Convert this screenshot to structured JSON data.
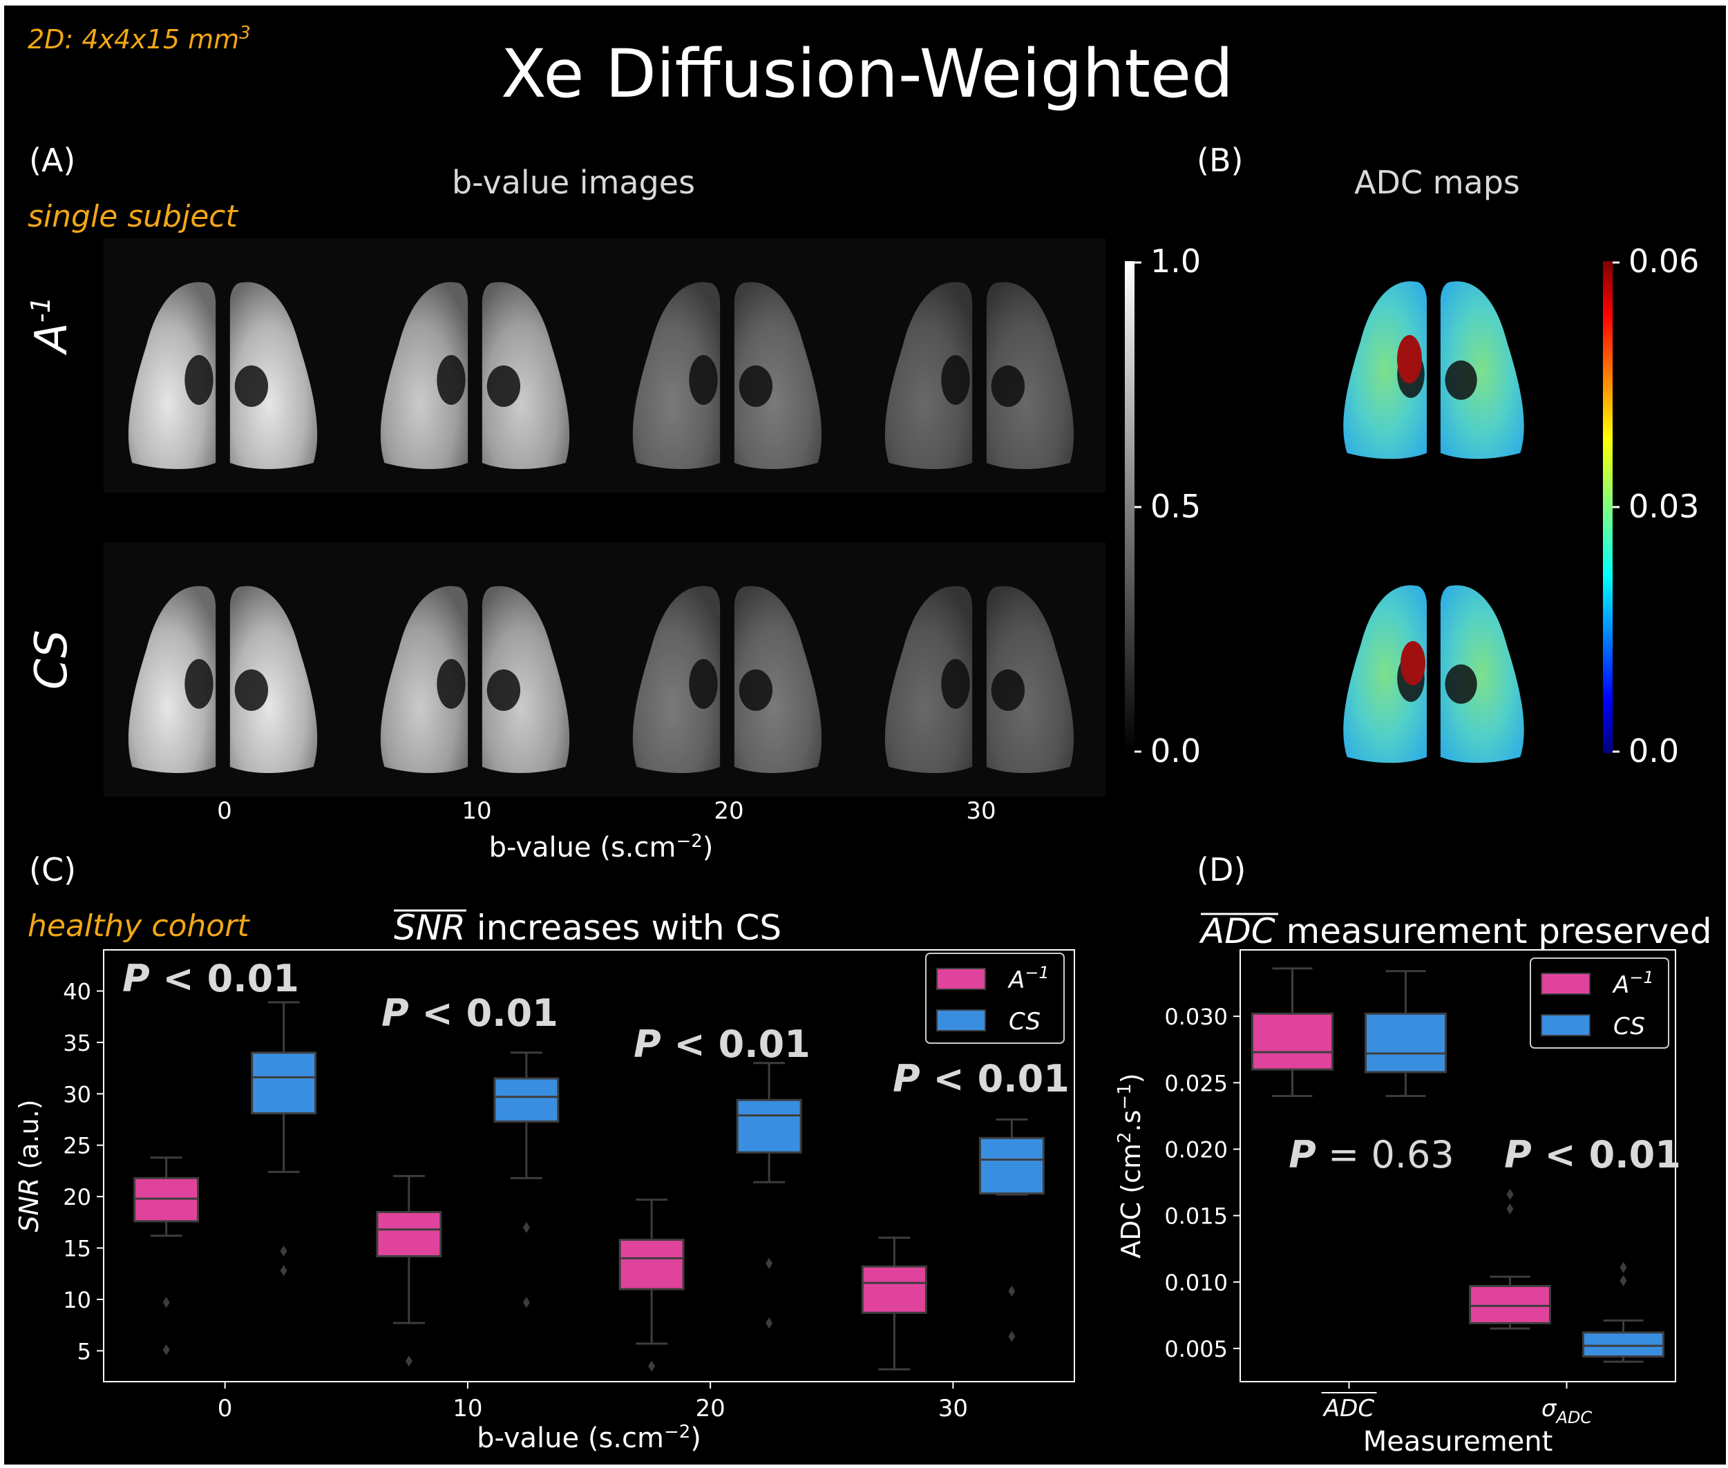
{
  "header": {
    "acq_note": "2D: 4x4x15 mm",
    "acq_note_sup": "3",
    "title": "Xe Diffusion-Weighted"
  },
  "panel_a": {
    "letter": "(A)",
    "subtitle": "b-value images",
    "subject_note": "single subject",
    "row_labels": [
      "A",
      "CS"
    ],
    "row_label_sup": "-1",
    "xticks": [
      "0",
      "10",
      "20",
      "30"
    ],
    "xlabel": "b-value (s.cm",
    "xlabel_sup": "−2",
    "xlabel_tail": ")",
    "colorbar_ticks": [
      "1.0",
      "0.5",
      "0.0"
    ]
  },
  "panel_b": {
    "letter": "(B)",
    "subtitle": "ADC maps",
    "colorbar_ticks": [
      "0.06",
      "0.03",
      "0.0"
    ]
  },
  "panel_c": {
    "letter": "(C)",
    "cohort_note": "healthy cohort"
  },
  "panel_d": {
    "letter": "(D)"
  },
  "colors": {
    "a_inv": "#e0439b",
    "cs": "#3a8ee0",
    "annotation": "#f2a716",
    "background": "#000000"
  },
  "chart_data": [
    {
      "type": "box",
      "title_over": "SNR",
      "title_rest": " increases with CS",
      "xlabel": "b-value (s.cm",
      "xlabel_sup": "−2",
      "xlabel_tail": ")",
      "ylabel_over": "SNR",
      "ylabel_rest": " (a.u.)",
      "categories": [
        "0",
        "10",
        "20",
        "30"
      ],
      "ylim": [
        2,
        44
      ],
      "yticks": [
        5,
        10,
        15,
        20,
        25,
        30,
        35,
        40
      ],
      "legend_position": "top-right",
      "legend_sup": "−1",
      "series": [
        {
          "name": "A",
          "boxes": [
            {
              "whislo": 16.2,
              "q1": 17.6,
              "med": 19.8,
              "q3": 21.8,
              "whishi": 23.8,
              "fliers": [
                9.7,
                5.1
              ]
            },
            {
              "whislo": 7.7,
              "q1": 14.2,
              "med": 16.8,
              "q3": 18.5,
              "whishi": 22.0,
              "fliers": [
                4.0
              ]
            },
            {
              "whislo": 5.7,
              "q1": 11.0,
              "med": 14.0,
              "q3": 15.8,
              "whishi": 19.7,
              "fliers": [
                3.5
              ]
            },
            {
              "whislo": 3.2,
              "q1": 8.7,
              "med": 11.6,
              "q3": 13.2,
              "whishi": 16.0,
              "fliers": []
            }
          ]
        },
        {
          "name": "CS",
          "boxes": [
            {
              "whislo": 22.4,
              "q1": 28.1,
              "med": 31.6,
              "q3": 34.0,
              "whishi": 38.9,
              "fliers": [
                14.7,
                12.8
              ]
            },
            {
              "whislo": 21.8,
              "q1": 27.3,
              "med": 29.7,
              "q3": 31.5,
              "whishi": 34.0,
              "fliers": [
                17.0,
                9.7
              ]
            },
            {
              "whislo": 21.4,
              "q1": 24.3,
              "med": 27.9,
              "q3": 29.4,
              "whishi": 33.0,
              "fliers": [
                13.5,
                7.7
              ]
            },
            {
              "whislo": 20.2,
              "q1": 20.3,
              "med": 23.6,
              "q3": 25.7,
              "whishi": 27.5,
              "fliers": [
                10.8,
                6.4
              ]
            }
          ]
        }
      ],
      "annotations": [
        "P < 0.01",
        "P < 0.01",
        "P < 0.01",
        "P < 0.01"
      ]
    },
    {
      "type": "box",
      "title_over": "ADC",
      "title_rest": " measurement preserved",
      "xlabel": "Measurement",
      "ylabel": "ADC (cm",
      "ylabel_sup1": "2",
      "ylabel_mid": ".s",
      "ylabel_sup2": "−1",
      "ylabel_tail": ")",
      "categories": [
        "ADC",
        "σ"
      ],
      "category_sub": "ADC",
      "ylim": [
        0.0025,
        0.035
      ],
      "yticks": [
        0.005,
        0.01,
        0.015,
        0.02,
        0.025,
        0.03
      ],
      "ytick_labels": [
        "0.005",
        "0.010",
        "0.015",
        "0.020",
        "0.025",
        "0.030"
      ],
      "legend_position": "top-right",
      "legend_sup": "−1",
      "series": [
        {
          "name": "A",
          "boxes": [
            {
              "whislo": 0.024,
              "q1": 0.026,
              "med": 0.0273,
              "q3": 0.0302,
              "whishi": 0.0336,
              "fliers": []
            },
            {
              "whislo": 0.0065,
              "q1": 0.0069,
              "med": 0.0082,
              "q3": 0.0097,
              "whishi": 0.0104,
              "fliers": [
                0.0166,
                0.0155
              ]
            }
          ]
        },
        {
          "name": "CS",
          "boxes": [
            {
              "whislo": 0.024,
              "q1": 0.0258,
              "med": 0.0272,
              "q3": 0.0302,
              "whishi": 0.0334,
              "fliers": []
            },
            {
              "whislo": 0.004,
              "q1": 0.0044,
              "med": 0.0052,
              "q3": 0.0062,
              "whishi": 0.0071,
              "fliers": [
                0.0111,
                0.0101
              ]
            }
          ]
        }
      ],
      "annotations": [
        "P = 0.63",
        "P < 0.01"
      ]
    }
  ]
}
